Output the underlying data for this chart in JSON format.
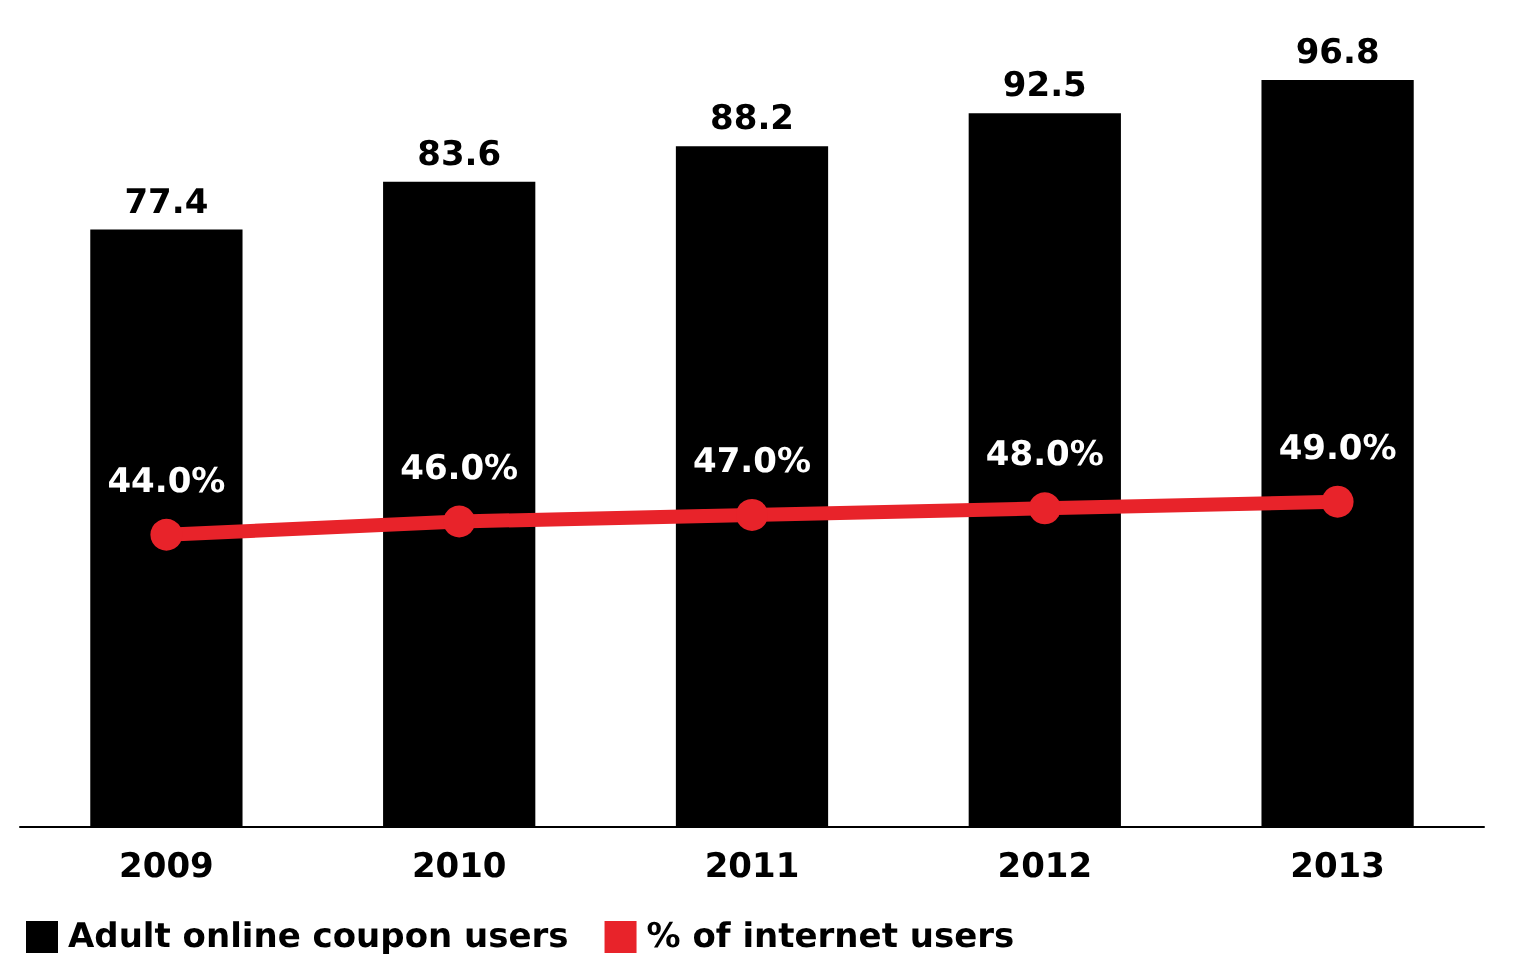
{
  "chart_data": {
    "type": "bar",
    "categories": [
      "2009",
      "2010",
      "2011",
      "2012",
      "2013"
    ],
    "series": [
      {
        "name": "Adult online coupon users",
        "color": "#000000",
        "values": [
          77.4,
          83.6,
          88.2,
          92.5,
          96.8
        ]
      },
      {
        "name": "% of internet users",
        "type": "line",
        "axis": "y2",
        "color": "#e8232a",
        "values": [
          44.0,
          46.0,
          47.0,
          48.0,
          49.0
        ],
        "value_labels": [
          "44.0%",
          "46.0%",
          "47.0%",
          "48.0%",
          "49.0%"
        ]
      }
    ],
    "data_labels": true,
    "legend": "bottom left",
    "marker": "circle",
    "grid": false
  }
}
